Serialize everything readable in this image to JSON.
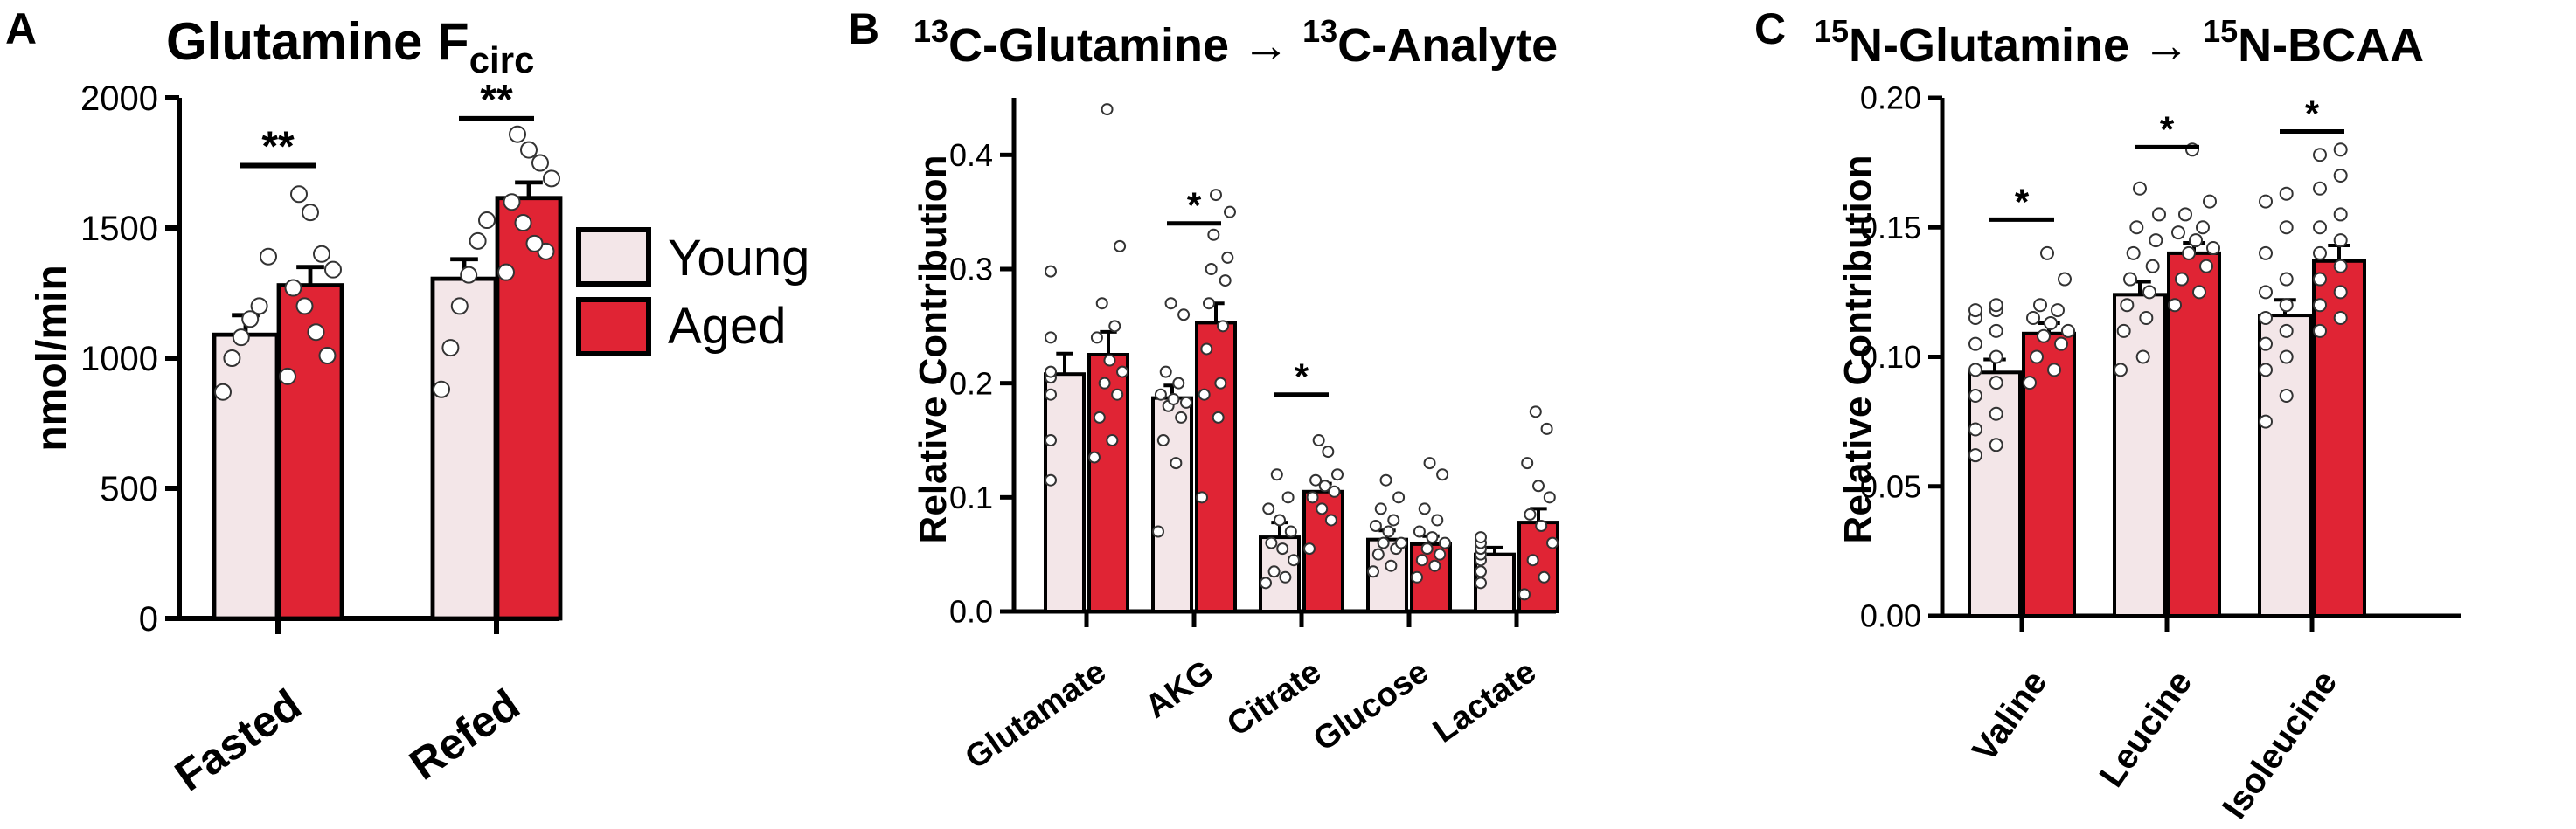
{
  "colors": {
    "young": "#f3e6e8",
    "aged": "#e02434",
    "edge": "#000000",
    "point_fill": "#ffffff"
  },
  "legend": {
    "young": "Young",
    "aged": "Aged"
  },
  "chart_data": [
    {
      "panel": "A",
      "type": "bar",
      "title_main": "Glutamine F",
      "title_sub": "circ",
      "ylabel": "nmol/min",
      "ylim": [
        0,
        2000
      ],
      "yticks": [
        0,
        500,
        1000,
        1500,
        2000
      ],
      "ytick_labels": [
        "0",
        "500",
        "1000",
        "1500",
        "2000"
      ],
      "categories": [
        "Fasted",
        "Refed"
      ],
      "series": [
        {
          "name": "Young",
          "values": [
            1090,
            1305
          ],
          "sem": [
            75,
            75
          ],
          "points": [
            [
              870,
              1000,
              1080,
              1150,
              1200,
              1390
            ],
            [
              880,
              1040,
              1200,
              1320,
              1450,
              1530
            ]
          ]
        },
        {
          "name": "Aged",
          "values": [
            1280,
            1615
          ],
          "sem": [
            70,
            60
          ],
          "points": [
            [
              930,
              1010,
              1100,
              1200,
              1270,
              1340,
              1400,
              1560,
              1630
            ],
            [
              1330,
              1410,
              1440,
              1520,
              1600,
              1690,
              1750,
              1800,
              1860
            ]
          ]
        }
      ],
      "significance": [
        {
          "category": 0,
          "label": "**",
          "y": 1740
        },
        {
          "category": 1,
          "label": "**",
          "y": 1920
        }
      ]
    },
    {
      "panel": "B",
      "type": "bar",
      "title_parts": [
        {
          "text": "13",
          "sup": true
        },
        {
          "text": "C-Glutamine → "
        },
        {
          "text": "13",
          "sup": true
        },
        {
          "text": "C-Analyte"
        }
      ],
      "ylabel": "Relative Contribution",
      "ylim": [
        0,
        0.45
      ],
      "yticks": [
        0,
        0.1,
        0.2,
        0.3,
        0.4
      ],
      "ytick_labels": [
        "0.0",
        "0.1",
        "0.2",
        "0.3",
        "0.4"
      ],
      "categories": [
        "Glutamate",
        "AKG",
        "Citrate",
        "Glucose",
        "Lactate"
      ],
      "series": [
        {
          "name": "Young",
          "values": [
            0.208,
            0.187,
            0.065,
            0.063,
            0.05
          ],
          "sem": [
            0.018,
            0.011,
            0.013,
            0.008,
            0.006
          ],
          "points": [
            [
              0.115,
              0.15,
              0.19,
              0.205,
              0.21,
              0.24,
              0.298
            ],
            [
              0.07,
              0.13,
              0.15,
              0.17,
              0.18,
              0.183,
              0.186,
              0.19,
              0.2,
              0.21,
              0.26,
              0.27
            ],
            [
              0.025,
              0.03,
              0.035,
              0.045,
              0.055,
              0.06,
              0.07,
              0.08,
              0.09,
              0.1,
              0.12
            ],
            [
              0.035,
              0.04,
              0.05,
              0.055,
              0.06,
              0.06,
              0.07,
              0.075,
              0.08,
              0.09,
              0.1,
              0.115
            ],
            [
              0.025,
              0.035,
              0.045,
              0.05,
              0.055,
              0.06,
              0.065
            ]
          ]
        },
        {
          "name": "Aged",
          "values": [
            0.225,
            0.253,
            0.105,
            0.059,
            0.078
          ],
          "sem": [
            0.02,
            0.017,
            0.007,
            0.007,
            0.012
          ],
          "points": [
            [
              0.135,
              0.15,
              0.17,
              0.19,
              0.2,
              0.21,
              0.22,
              0.24,
              0.25,
              0.27,
              0.32,
              0.44
            ],
            [
              0.1,
              0.17,
              0.19,
              0.2,
              0.23,
              0.25,
              0.27,
              0.29,
              0.3,
              0.31,
              0.33,
              0.35,
              0.365
            ],
            [
              0.055,
              0.08,
              0.09,
              0.1,
              0.105,
              0.11,
              0.115,
              0.12,
              0.14,
              0.15
            ],
            [
              0.03,
              0.04,
              0.045,
              0.05,
              0.055,
              0.06,
              0.065,
              0.07,
              0.08,
              0.09,
              0.12,
              0.13
            ],
            [
              0.015,
              0.03,
              0.045,
              0.06,
              0.075,
              0.085,
              0.1,
              0.11,
              0.13,
              0.16,
              0.175
            ]
          ]
        }
      ],
      "significance": [
        {
          "category": 1,
          "label": "*",
          "y": 0.34
        },
        {
          "category": 2,
          "label": "*",
          "y": 0.19
        }
      ]
    },
    {
      "panel": "C",
      "type": "bar",
      "title_parts": [
        {
          "text": "15",
          "sup": true
        },
        {
          "text": "N-Glutamine → "
        },
        {
          "text": "15",
          "sup": true
        },
        {
          "text": "N-BCAA"
        }
      ],
      "ylabel": "Relative Contribution",
      "ylim": [
        0,
        0.2
      ],
      "yticks": [
        0,
        0.05,
        0.1,
        0.15,
        0.2
      ],
      "ytick_labels": [
        "0.00",
        "0.05",
        "0.10",
        "0.15",
        "0.20"
      ],
      "categories": [
        "Valine",
        "Leucine",
        "Isoleucine"
      ],
      "series": [
        {
          "name": "Young",
          "values": [
            0.094,
            0.124,
            0.116
          ],
          "sem": [
            0.005,
            0.005,
            0.006
          ],
          "points": [
            [
              0.062,
              0.066,
              0.072,
              0.078,
              0.085,
              0.09,
              0.095,
              0.1,
              0.105,
              0.11,
              0.115,
              0.118,
              0.118,
              0.12
            ],
            [
              0.095,
              0.1,
              0.11,
              0.115,
              0.12,
              0.125,
              0.13,
              0.135,
              0.14,
              0.145,
              0.15,
              0.155,
              0.165
            ],
            [
              0.075,
              0.085,
              0.095,
              0.1,
              0.105,
              0.11,
              0.115,
              0.12,
              0.125,
              0.13,
              0.14,
              0.15,
              0.16,
              0.163
            ]
          ]
        },
        {
          "name": "Aged",
          "values": [
            0.109,
            0.14,
            0.137
          ],
          "sem": [
            0.004,
            0.004,
            0.006
          ],
          "points": [
            [
              0.09,
              0.095,
              0.1,
              0.105,
              0.108,
              0.11,
              0.113,
              0.115,
              0.118,
              0.12,
              0.13,
              0.14
            ],
            [
              0.12,
              0.125,
              0.13,
              0.135,
              0.14,
              0.142,
              0.145,
              0.148,
              0.15,
              0.155,
              0.16,
              0.18
            ],
            [
              0.11,
              0.115,
              0.12,
              0.125,
              0.13,
              0.135,
              0.14,
              0.145,
              0.15,
              0.155,
              0.165,
              0.17,
              0.178,
              0.18
            ]
          ]
        }
      ],
      "significance": [
        {
          "category": 0,
          "label": "*",
          "y": 0.153
        },
        {
          "category": 1,
          "label": "*",
          "y": 0.181
        },
        {
          "category": 2,
          "label": "*",
          "y": 0.187
        }
      ]
    }
  ]
}
